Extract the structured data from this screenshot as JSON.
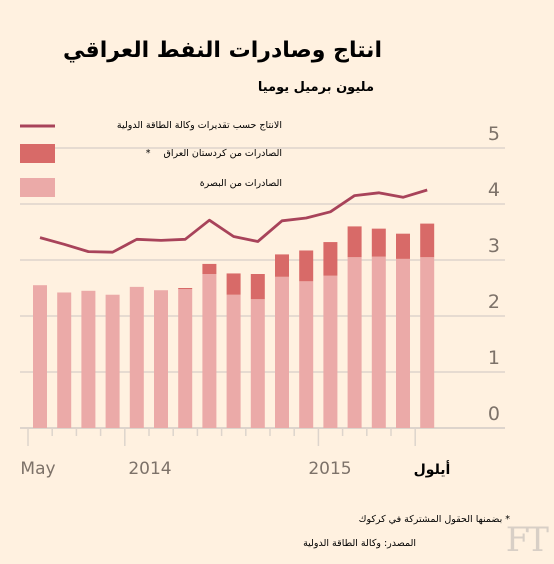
{
  "title": "انتاج وصادرات النفط العراقي",
  "subtitle": "مليون برميل يوميا",
  "legend": {
    "production": "الانتاج حسب تقديرات وكالة الطاقة الدولية",
    "kurdistan": "الصادرات من كردستان العراق",
    "kurdistan_marker": "*",
    "basra": "الصادرات من البصرة"
  },
  "footnote": "* بضمنها الحقول المشتركة في كركوك",
  "source": "المصدر: وكالة الطاقة الدولية",
  "watermark": "FT",
  "colors": {
    "background": "#fff1e0",
    "basra": "#ebaaa8",
    "kurdistan": "#d86a68",
    "production": "#a8435a",
    "grid": "#ddd4cc",
    "tick_text": "#7d7269"
  },
  "chart_data": {
    "type": "bar",
    "ylim": [
      0,
      5
    ],
    "yticks": [
      "0",
      "1",
      "2",
      "3",
      "4",
      "5"
    ],
    "x_labels": [
      "May",
      "2014",
      "2015",
      "أيلول"
    ],
    "series": [
      {
        "name": "الصادرات من البصرة",
        "values": [
          2.55,
          2.42,
          2.45,
          2.38,
          2.52,
          2.46,
          2.48,
          2.75,
          2.38,
          2.3,
          2.7,
          2.62,
          2.72,
          3.05,
          3.06,
          3.02,
          3.05
        ]
      },
      {
        "name": "الصادرات من كردستان العراق",
        "values": [
          0,
          0,
          0,
          0,
          0,
          0,
          0.02,
          0.18,
          0.38,
          0.45,
          0.4,
          0.55,
          0.6,
          0.55,
          0.5,
          0.45,
          0.6
        ]
      },
      {
        "name": "الانتاج حسب تقديرات وكالة الطاقة الدولية",
        "values": [
          3.4,
          3.28,
          3.15,
          3.14,
          3.37,
          3.35,
          3.37,
          3.71,
          3.42,
          3.33,
          3.7,
          3.75,
          3.86,
          4.15,
          4.2,
          4.12,
          4.25
        ]
      }
    ]
  }
}
